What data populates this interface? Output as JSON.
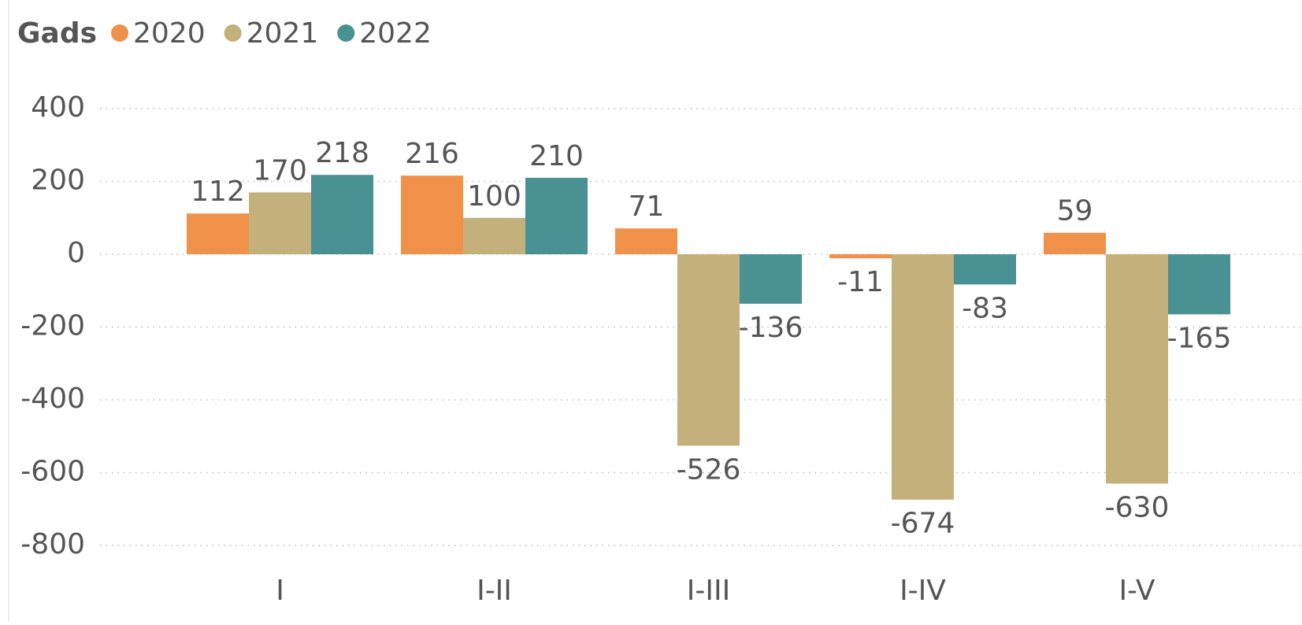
{
  "chart_data": {
    "type": "bar",
    "legend_title": "Gads",
    "categories": [
      "I",
      "I-II",
      "I-III",
      "I-IV",
      "I-V"
    ],
    "series": [
      {
        "name": "2020",
        "color": "#F0914A",
        "values": [
          112,
          216,
          71,
          -11,
          59
        ]
      },
      {
        "name": "2021",
        "color": "#C4B07B",
        "values": [
          170,
          100,
          -526,
          -674,
          -630
        ]
      },
      {
        "name": "2022",
        "color": "#4A9194",
        "values": [
          218,
          210,
          -136,
          -83,
          -165
        ]
      }
    ],
    "ylim": [
      -800,
      400
    ],
    "yticks": [
      -800,
      -600,
      -400,
      -200,
      0,
      200,
      400
    ],
    "grid": true,
    "legend": "top-left"
  }
}
